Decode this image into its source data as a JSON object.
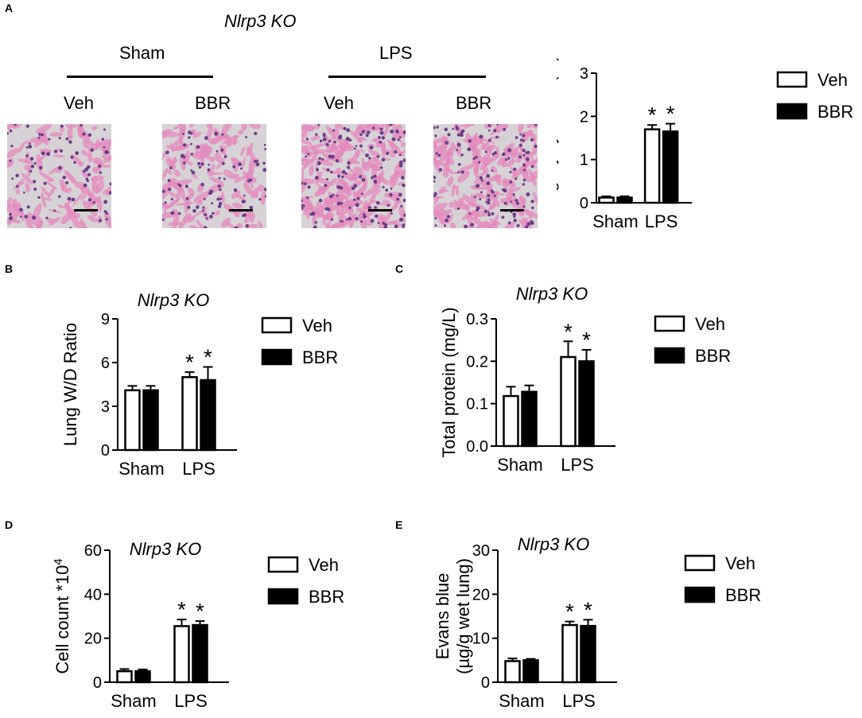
{
  "panel_a": {
    "letter": "A",
    "title": "Nlrp3 KO",
    "groups": [
      "Sham",
      "LPS"
    ],
    "sublabels": [
      "Veh",
      "BBR",
      "Veh",
      "BBR"
    ],
    "micrographs": [
      "sham-veh",
      "sham-bbr",
      "lps-veh",
      "lps-bbr"
    ]
  },
  "chart_data": [
    {
      "id": "A",
      "type": "bar",
      "title": "",
      "ylabel": "Lung injury score (%)",
      "categories": [
        "Sham",
        "LPS"
      ],
      "ylim": [
        0,
        3
      ],
      "yticks": [
        0,
        1,
        2,
        3
      ],
      "tick_labels": [
        "0",
        "1",
        "2",
        "3"
      ],
      "series": [
        {
          "name": "Veh",
          "values": [
            0.12,
            1.7
          ],
          "errors": [
            0.03,
            0.1
          ],
          "sig": [
            "",
            "*"
          ]
        },
        {
          "name": "BBR",
          "values": [
            0.12,
            1.65
          ],
          "errors": [
            0.03,
            0.18
          ],
          "sig": [
            "",
            "*"
          ]
        }
      ],
      "legend": [
        "Veh",
        "BBR"
      ]
    },
    {
      "id": "B",
      "type": "bar",
      "title": "Nlrp3 KO",
      "ylabel": "Lung W/D Ratio",
      "categories": [
        "Sham",
        "LPS"
      ],
      "ylim": [
        0,
        9
      ],
      "yticks": [
        0,
        3,
        6,
        9
      ],
      "tick_labels": [
        "0",
        "3",
        "6",
        "9"
      ],
      "series": [
        {
          "name": "Veh",
          "values": [
            4.1,
            5.0
          ],
          "errors": [
            0.3,
            0.35
          ],
          "sig": [
            "",
            "*"
          ]
        },
        {
          "name": "BBR",
          "values": [
            4.1,
            4.8
          ],
          "errors": [
            0.3,
            0.9
          ],
          "sig": [
            "",
            "*"
          ]
        }
      ],
      "legend": [
        "Veh",
        "BBR"
      ]
    },
    {
      "id": "C",
      "type": "bar",
      "title": "Nlrp3 KO",
      "ylabel": "Total protein (mg/L)",
      "categories": [
        "Sham",
        "LPS"
      ],
      "ylim": [
        0,
        0.3
      ],
      "yticks": [
        0,
        0.1,
        0.2,
        0.3
      ],
      "tick_labels": [
        "0.0",
        "0.1",
        "0.2",
        "0.3"
      ],
      "series": [
        {
          "name": "Veh",
          "values": [
            0.118,
            0.21
          ],
          "errors": [
            0.022,
            0.037
          ],
          "sig": [
            "",
            "*"
          ]
        },
        {
          "name": "BBR",
          "values": [
            0.128,
            0.2
          ],
          "errors": [
            0.015,
            0.027
          ],
          "sig": [
            "",
            "*"
          ]
        }
      ],
      "legend": [
        "Veh",
        "BBR"
      ]
    },
    {
      "id": "D",
      "type": "bar",
      "title": "Nlrp3 KO",
      "ylabel": "Cell count *10",
      "ylabel_sup": "4",
      "categories": [
        "Sham",
        "LPS"
      ],
      "ylim": [
        0,
        60
      ],
      "yticks": [
        0,
        20,
        40,
        60
      ],
      "tick_labels": [
        "0",
        "20",
        "40",
        "60"
      ],
      "series": [
        {
          "name": "Veh",
          "values": [
            5,
            25.5
          ],
          "errors": [
            1.0,
            3.0
          ],
          "sig": [
            "",
            "*"
          ]
        },
        {
          "name": "BBR",
          "values": [
            5,
            26
          ],
          "errors": [
            0.8,
            1.8
          ],
          "sig": [
            "",
            "*"
          ]
        }
      ],
      "legend": [
        "Veh",
        "BBR"
      ]
    },
    {
      "id": "E",
      "type": "bar",
      "title": "Nlrp3 KO",
      "ylabel": "Evans blue",
      "ylabel2": "(µg/g wet lung)",
      "categories": [
        "Sham",
        "LPS"
      ],
      "ylim": [
        0,
        30
      ],
      "yticks": [
        0,
        10,
        20,
        30
      ],
      "tick_labels": [
        "0",
        "10",
        "20",
        "30"
      ],
      "series": [
        {
          "name": "Veh",
          "values": [
            4.8,
            13
          ],
          "errors": [
            0.6,
            0.8
          ],
          "sig": [
            "",
            "*"
          ]
        },
        {
          "name": "BBR",
          "values": [
            5.0,
            12.8
          ],
          "errors": [
            0.3,
            1.4
          ],
          "sig": [
            "",
            "*"
          ]
        }
      ],
      "legend": [
        "Veh",
        "BBR"
      ]
    }
  ]
}
